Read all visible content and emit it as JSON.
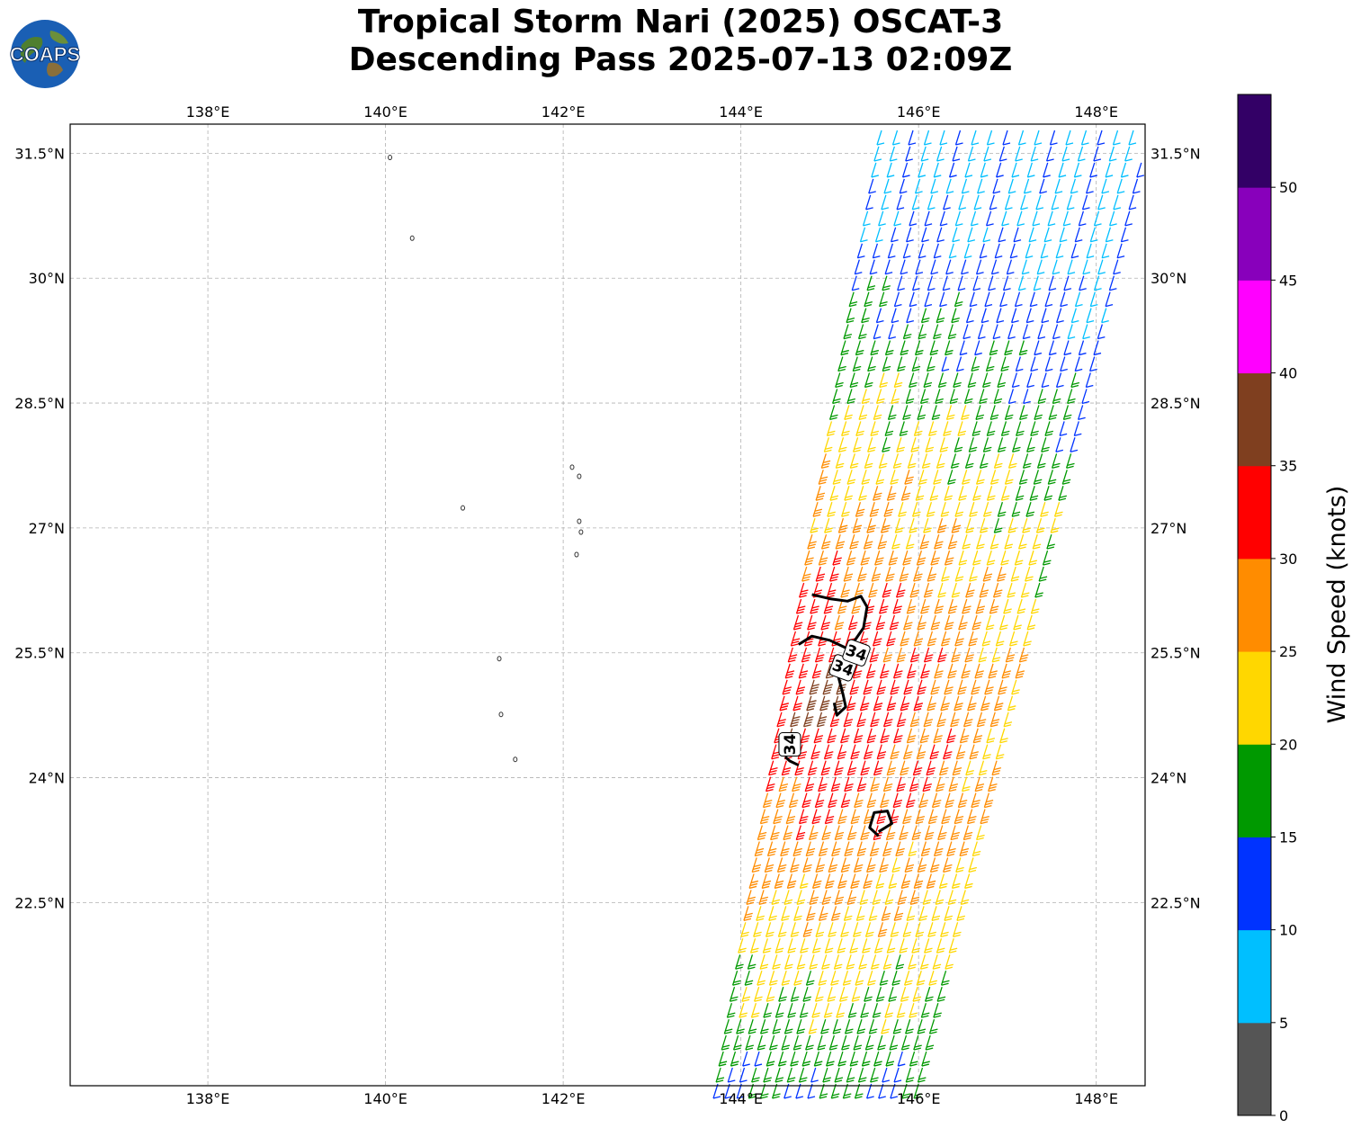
{
  "title": {
    "line1": "Tropical Storm Nari (2025) OSCAT-3",
    "line2": "Descending Pass 2025-07-13 02:09Z"
  },
  "logo": {
    "text": "COAPS",
    "icon": "globe-logo-icon"
  },
  "map": {
    "lon_range": [
      136.45,
      148.55
    ],
    "lat_range": [
      20.3,
      31.85
    ],
    "lon_ticks": [
      {
        "value": 138,
        "label": "138°E"
      },
      {
        "value": 140,
        "label": "140°E"
      },
      {
        "value": 142,
        "label": "142°E"
      },
      {
        "value": 144,
        "label": "144°E"
      },
      {
        "value": 146,
        "label": "146°E"
      },
      {
        "value": 148,
        "label": "148°E"
      }
    ],
    "lat_ticks": [
      {
        "value": 31.5,
        "label": "31.5°N"
      },
      {
        "value": 30,
        "label": "30°N"
      },
      {
        "value": 28.5,
        "label": "28.5°N"
      },
      {
        "value": 27,
        "label": "27°N"
      },
      {
        "value": 25.5,
        "label": "25.5°N"
      },
      {
        "value": 24,
        "label": "24°N"
      },
      {
        "value": 22.5,
        "label": "22.5°N"
      }
    ],
    "gridlines": true,
    "islands": [
      {
        "lon": 140.05,
        "lat": 31.45
      },
      {
        "lon": 140.3,
        "lat": 30.48
      },
      {
        "lon": 142.1,
        "lat": 27.73
      },
      {
        "lon": 142.18,
        "lat": 27.62
      },
      {
        "lon": 140.87,
        "lat": 27.24
      },
      {
        "lon": 142.18,
        "lat": 27.08
      },
      {
        "lon": 142.2,
        "lat": 26.95
      },
      {
        "lon": 142.15,
        "lat": 26.68
      },
      {
        "lon": 141.28,
        "lat": 25.43
      },
      {
        "lon": 141.3,
        "lat": 24.76
      },
      {
        "lon": 141.46,
        "lat": 24.22
      }
    ],
    "contour_label": "34",
    "contour_labels_count": 3,
    "contours": [
      [
        [
          144.8,
          26.2
        ],
        [
          145.0,
          26.15
        ],
        [
          145.2,
          26.12
        ],
        [
          145.35,
          26.18
        ],
        [
          145.42,
          26.05
        ],
        [
          145.38,
          25.8
        ],
        [
          145.25,
          25.6
        ],
        [
          145.15,
          25.4
        ],
        [
          145.1,
          25.2
        ],
        [
          145.15,
          25.0
        ],
        [
          145.18,
          24.85
        ],
        [
          145.08,
          24.75
        ],
        [
          145.05,
          24.9
        ]
      ],
      [
        [
          144.65,
          25.6
        ],
        [
          144.8,
          25.7
        ],
        [
          145.0,
          25.65
        ],
        [
          145.2,
          25.55
        ]
      ],
      [
        [
          144.65,
          24.15
        ],
        [
          144.55,
          24.2
        ],
        [
          144.5,
          24.25
        ]
      ],
      [
        [
          145.55,
          23.35
        ],
        [
          145.7,
          23.45
        ],
        [
          145.65,
          23.6
        ],
        [
          145.5,
          23.58
        ],
        [
          145.45,
          23.4
        ],
        [
          145.55,
          23.3
        ]
      ]
    ],
    "swath_note": "wind barbs colored by speed"
  },
  "colorbar": {
    "label": "Wind Speed (knots)",
    "ticks": [
      "0",
      "5",
      "10",
      "15",
      "20",
      "25",
      "30",
      "35",
      "40",
      "45",
      "50"
    ],
    "colors": [
      "#555555",
      "#00bfff",
      "#0033ff",
      "#009900",
      "#ffd700",
      "#ff8c00",
      "#ff0000",
      "#7f3f1f",
      "#ff00ff",
      "#8800bb",
      "#330066"
    ]
  }
}
